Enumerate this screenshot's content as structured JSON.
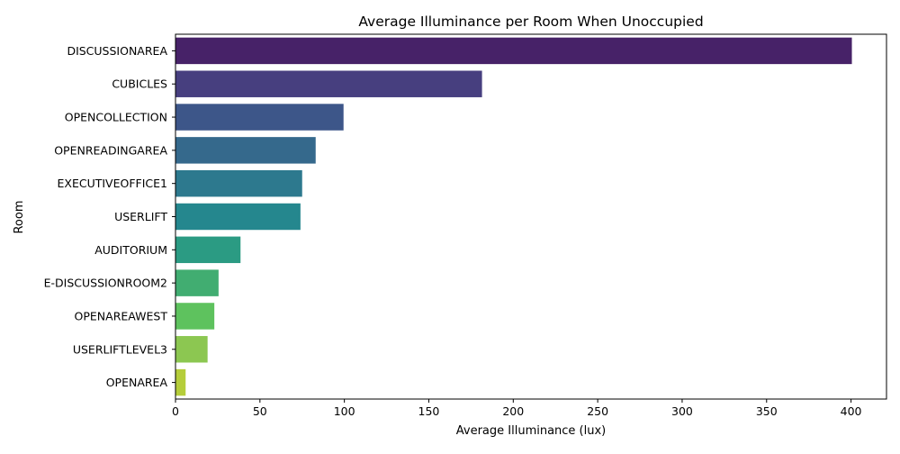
{
  "chart_data": {
    "type": "bar",
    "orientation": "horizontal",
    "title": "Average Illuminance per Room When Unoccupied",
    "xlabel": "Average Illuminance (lux)",
    "ylabel": "Room",
    "categories": [
      "DISCUSSIONAREA",
      "CUBICLES",
      "OPENCOLLECTION",
      "OPENREADINGAREA",
      "EXECUTIVEOFFICE1",
      "USERLIFT",
      "AUDITORIUM",
      "E-DISCUSSIONROOM2",
      "OPENAREAWEST",
      "USERLIFTLEVEL3",
      "OPENAREA"
    ],
    "values": [
      400.5,
      181.5,
      99.5,
      83,
      75,
      74,
      38.5,
      25.5,
      23,
      19,
      6
    ],
    "colors": [
      "#472268",
      "#473f7f",
      "#3d5689",
      "#35698c",
      "#2d798e",
      "#25878e",
      "#2b9b83",
      "#41ad71",
      "#5ec25e",
      "#8cc751",
      "#b5cd3a"
    ],
    "xlim": [
      0,
      421
    ],
    "xticks": [
      0,
      50,
      100,
      150,
      200,
      250,
      300,
      350,
      400
    ],
    "grid": false,
    "legend": "none"
  }
}
